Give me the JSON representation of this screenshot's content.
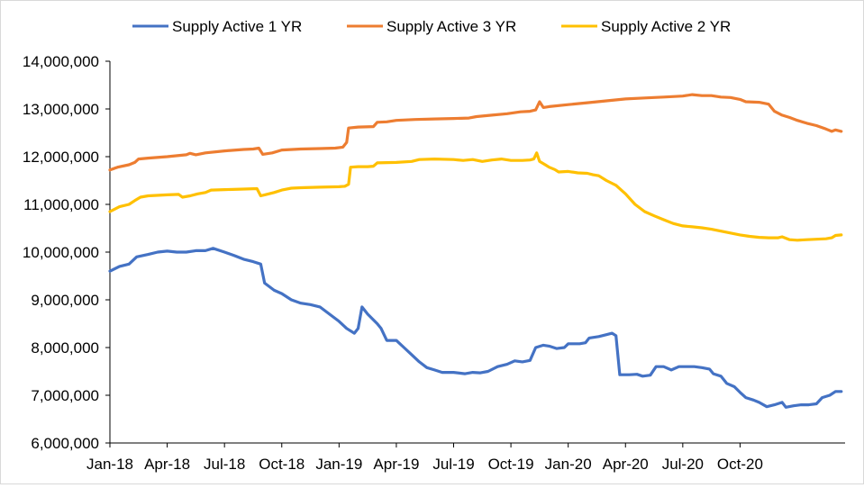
{
  "chart_data": {
    "type": "line",
    "title": "",
    "xlabel": "",
    "ylabel": "",
    "ylim": [
      6000000,
      14000000
    ],
    "yticks": [
      6000000,
      7000000,
      8000000,
      9000000,
      10000000,
      11000000,
      12000000,
      13000000,
      14000000
    ],
    "ytick_labels": [
      "6,000,000",
      "7,000,000",
      "8,000,000",
      "9,000,000",
      "10,000,000",
      "11,000,000",
      "12,000,000",
      "13,000,000",
      "14,000,000"
    ],
    "x_start": "Jan-18",
    "x_months": 35,
    "xtick_labels": [
      "Jan-18",
      "Apr-18",
      "Jul-18",
      "Oct-18",
      "Jan-19",
      "Apr-19",
      "Jul-19",
      "Oct-19",
      "Jan-20",
      "Apr-20",
      "Jul-20",
      "Oct-20"
    ],
    "legend_position": "top",
    "grid": false,
    "series": [
      {
        "name": "Supply Active 1 YR",
        "color": "#4472C4",
        "points": [
          [
            0,
            9600000
          ],
          [
            0.5,
            9700000
          ],
          [
            1,
            9750000
          ],
          [
            1.4,
            9900000
          ],
          [
            2,
            9950000
          ],
          [
            2.5,
            10000000
          ],
          [
            3,
            10020000
          ],
          [
            3.5,
            10000000
          ],
          [
            4,
            10000000
          ],
          [
            4.5,
            10030000
          ],
          [
            5,
            10030000
          ],
          [
            5.4,
            10080000
          ],
          [
            6,
            10000000
          ],
          [
            6.5,
            9930000
          ],
          [
            7,
            9850000
          ],
          [
            7.5,
            9800000
          ],
          [
            7.9,
            9750000
          ],
          [
            8.1,
            9350000
          ],
          [
            8.6,
            9200000
          ],
          [
            9,
            9130000
          ],
          [
            9.5,
            9000000
          ],
          [
            10,
            8930000
          ],
          [
            10.5,
            8900000
          ],
          [
            11,
            8850000
          ],
          [
            11.5,
            8700000
          ],
          [
            12,
            8550000
          ],
          [
            12.4,
            8400000
          ],
          [
            12.8,
            8300000
          ],
          [
            13,
            8400000
          ],
          [
            13.2,
            8850000
          ],
          [
            13.5,
            8700000
          ],
          [
            14,
            8500000
          ],
          [
            14.2,
            8400000
          ],
          [
            14.5,
            8150000
          ],
          [
            15,
            8150000
          ],
          [
            15.4,
            8000000
          ],
          [
            15.8,
            7850000
          ],
          [
            16.2,
            7700000
          ],
          [
            16.6,
            7580000
          ],
          [
            17,
            7530000
          ],
          [
            17.4,
            7480000
          ],
          [
            18,
            7480000
          ],
          [
            18.6,
            7450000
          ],
          [
            19,
            7480000
          ],
          [
            19.4,
            7470000
          ],
          [
            19.8,
            7500000
          ],
          [
            20.3,
            7600000
          ],
          [
            20.8,
            7650000
          ],
          [
            21.2,
            7720000
          ],
          [
            21.6,
            7700000
          ],
          [
            22,
            7730000
          ],
          [
            22.3,
            8000000
          ],
          [
            22.7,
            8050000
          ],
          [
            23,
            8030000
          ],
          [
            23.4,
            7980000
          ],
          [
            23.8,
            8000000
          ],
          [
            24,
            8080000
          ],
          [
            24.6,
            8080000
          ],
          [
            24.9,
            8100000
          ],
          [
            25.1,
            8200000
          ],
          [
            25.6,
            8230000
          ],
          [
            26,
            8270000
          ],
          [
            26.3,
            8300000
          ],
          [
            26.5,
            8250000
          ],
          [
            26.7,
            7430000
          ],
          [
            27.2,
            7430000
          ],
          [
            27.6,
            7440000
          ],
          [
            27.9,
            7400000
          ],
          [
            28.3,
            7420000
          ],
          [
            28.6,
            7600000
          ],
          [
            29,
            7600000
          ],
          [
            29.4,
            7530000
          ],
          [
            29.8,
            7600000
          ],
          [
            30.2,
            7600000
          ],
          [
            30.6,
            7600000
          ],
          [
            31,
            7580000
          ],
          [
            31.4,
            7550000
          ],
          [
            31.6,
            7450000
          ],
          [
            32,
            7400000
          ],
          [
            32.3,
            7250000
          ],
          [
            32.7,
            7180000
          ],
          [
            33,
            7060000
          ],
          [
            33.3,
            6950000
          ],
          [
            33.7,
            6900000
          ],
          [
            34,
            6850000
          ],
          [
            34.4,
            6760000
          ],
          [
            34.8,
            6800000
          ],
          [
            35.2,
            6850000
          ],
          [
            35.4,
            6750000
          ],
          [
            35.8,
            6780000
          ],
          [
            36.2,
            6800000
          ],
          [
            36.6,
            6800000
          ],
          [
            37,
            6820000
          ],
          [
            37.3,
            6950000
          ],
          [
            37.7,
            7000000
          ],
          [
            38,
            7080000
          ],
          [
            38.3,
            7080000
          ]
        ]
      },
      {
        "name": "Supply Active 3 YR",
        "color": "#ED7D31",
        "points": [
          [
            0,
            11720000
          ],
          [
            0.4,
            11780000
          ],
          [
            1,
            11830000
          ],
          [
            1.3,
            11880000
          ],
          [
            1.5,
            11950000
          ],
          [
            2,
            11970000
          ],
          [
            3,
            12000000
          ],
          [
            4,
            12040000
          ],
          [
            4.2,
            12070000
          ],
          [
            4.5,
            12040000
          ],
          [
            5,
            12080000
          ],
          [
            6,
            12120000
          ],
          [
            7,
            12150000
          ],
          [
            7.5,
            12160000
          ],
          [
            7.8,
            12180000
          ],
          [
            8,
            12050000
          ],
          [
            8.5,
            12080000
          ],
          [
            9,
            12140000
          ],
          [
            10,
            12160000
          ],
          [
            11,
            12170000
          ],
          [
            11.8,
            12180000
          ],
          [
            12.2,
            12200000
          ],
          [
            12.4,
            12300000
          ],
          [
            12.5,
            12600000
          ],
          [
            13,
            12620000
          ],
          [
            13.8,
            12630000
          ],
          [
            14,
            12720000
          ],
          [
            14.5,
            12730000
          ],
          [
            15,
            12760000
          ],
          [
            16,
            12780000
          ],
          [
            17,
            12790000
          ],
          [
            18,
            12800000
          ],
          [
            18.8,
            12810000
          ],
          [
            19.2,
            12840000
          ],
          [
            20,
            12870000
          ],
          [
            20.8,
            12900000
          ],
          [
            21.5,
            12940000
          ],
          [
            22,
            12950000
          ],
          [
            22.3,
            12980000
          ],
          [
            22.5,
            13150000
          ],
          [
            22.7,
            13030000
          ],
          [
            23,
            13050000
          ],
          [
            24,
            13090000
          ],
          [
            25,
            13130000
          ],
          [
            26,
            13170000
          ],
          [
            27,
            13210000
          ],
          [
            28,
            13230000
          ],
          [
            29,
            13250000
          ],
          [
            30,
            13270000
          ],
          [
            30.5,
            13300000
          ],
          [
            31,
            13280000
          ],
          [
            31.5,
            13280000
          ],
          [
            32,
            13250000
          ],
          [
            32.5,
            13240000
          ],
          [
            33,
            13200000
          ],
          [
            33.3,
            13150000
          ],
          [
            34,
            13140000
          ],
          [
            34.5,
            13100000
          ],
          [
            34.8,
            12950000
          ],
          [
            35.2,
            12870000
          ],
          [
            35.6,
            12820000
          ],
          [
            36,
            12760000
          ],
          [
            36.5,
            12700000
          ],
          [
            37,
            12650000
          ],
          [
            37.5,
            12580000
          ],
          [
            37.8,
            12530000
          ],
          [
            38,
            12560000
          ],
          [
            38.3,
            12530000
          ]
        ]
      },
      {
        "name": "Supply Active 2 YR",
        "color": "#FFC000",
        "points": [
          [
            0,
            10850000
          ],
          [
            0.5,
            10950000
          ],
          [
            1,
            11000000
          ],
          [
            1.3,
            11080000
          ],
          [
            1.6,
            11150000
          ],
          [
            2,
            11180000
          ],
          [
            3,
            11200000
          ],
          [
            3.6,
            11210000
          ],
          [
            3.8,
            11150000
          ],
          [
            4.2,
            11180000
          ],
          [
            4.6,
            11220000
          ],
          [
            5,
            11250000
          ],
          [
            5.3,
            11300000
          ],
          [
            6,
            11310000
          ],
          [
            7,
            11320000
          ],
          [
            7.7,
            11330000
          ],
          [
            7.9,
            11180000
          ],
          [
            8.2,
            11210000
          ],
          [
            8.6,
            11250000
          ],
          [
            9,
            11300000
          ],
          [
            9.5,
            11340000
          ],
          [
            10,
            11350000
          ],
          [
            11,
            11360000
          ],
          [
            12,
            11370000
          ],
          [
            12.3,
            11380000
          ],
          [
            12.5,
            11420000
          ],
          [
            12.6,
            11780000
          ],
          [
            13,
            11790000
          ],
          [
            13.5,
            11790000
          ],
          [
            13.8,
            11800000
          ],
          [
            14,
            11870000
          ],
          [
            15,
            11880000
          ],
          [
            15.8,
            11900000
          ],
          [
            16.2,
            11940000
          ],
          [
            17,
            11950000
          ],
          [
            18,
            11940000
          ],
          [
            18.5,
            11920000
          ],
          [
            19,
            11940000
          ],
          [
            19.5,
            11900000
          ],
          [
            20,
            11930000
          ],
          [
            20.5,
            11950000
          ],
          [
            21,
            11920000
          ],
          [
            21.6,
            11920000
          ],
          [
            22,
            11930000
          ],
          [
            22.2,
            11950000
          ],
          [
            22.35,
            12080000
          ],
          [
            22.5,
            11900000
          ],
          [
            22.8,
            11830000
          ],
          [
            23,
            11780000
          ],
          [
            23.3,
            11730000
          ],
          [
            23.5,
            11680000
          ],
          [
            24,
            11690000
          ],
          [
            24.5,
            11660000
          ],
          [
            25,
            11650000
          ],
          [
            25.3,
            11620000
          ],
          [
            25.6,
            11600000
          ],
          [
            26,
            11500000
          ],
          [
            26.5,
            11400000
          ],
          [
            27,
            11220000
          ],
          [
            27.5,
            11000000
          ],
          [
            28,
            10850000
          ],
          [
            28.5,
            10760000
          ],
          [
            29,
            10680000
          ],
          [
            29.5,
            10600000
          ],
          [
            30,
            10550000
          ],
          [
            30.5,
            10530000
          ],
          [
            31,
            10510000
          ],
          [
            31.5,
            10480000
          ],
          [
            32,
            10440000
          ],
          [
            32.5,
            10400000
          ],
          [
            33,
            10360000
          ],
          [
            33.5,
            10330000
          ],
          [
            34,
            10310000
          ],
          [
            34.5,
            10300000
          ],
          [
            35,
            10300000
          ],
          [
            35.2,
            10320000
          ],
          [
            35.6,
            10260000
          ],
          [
            36,
            10250000
          ],
          [
            36.5,
            10260000
          ],
          [
            37,
            10270000
          ],
          [
            37.5,
            10280000
          ],
          [
            37.8,
            10300000
          ],
          [
            38,
            10350000
          ],
          [
            38.3,
            10360000
          ]
        ]
      }
    ]
  }
}
